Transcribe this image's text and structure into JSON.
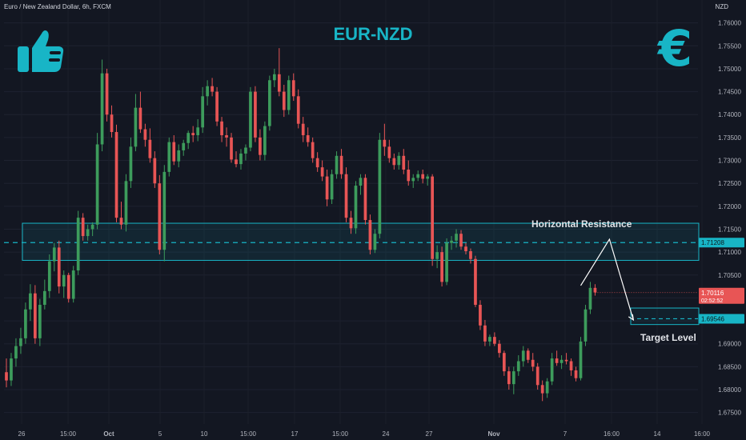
{
  "header": {
    "symbol_title": "Euro / New Zealand Dollar, 6h, FXCM",
    "currency": "NZD"
  },
  "title": "EUR-NZD",
  "annotations": {
    "resistance_label": "Horizontal Resistance",
    "target_label": "Target Level"
  },
  "icons": {
    "left": "thumbs-up-icon",
    "right": "euro-icon"
  },
  "euro_glyph": "€",
  "colors": {
    "background": "#131722",
    "up": "#26a69a",
    "up_body": "#3d9c5c",
    "down": "#e85555",
    "accent": "#18b5c6",
    "axis_text": "#b2b5be"
  },
  "chart_data": {
    "type": "candlestick",
    "title": "EUR-NZD",
    "ylim": [
      1.6725,
      1.765
    ],
    "y_ticks": [
      "1.76000",
      "1.75500",
      "1.75000",
      "1.74500",
      "1.74000",
      "1.73500",
      "1.73000",
      "1.72500",
      "1.72000",
      "1.71500",
      "1.71000",
      "1.70500",
      "1.70000",
      "1.69500",
      "1.69000",
      "1.68500",
      "1.68000",
      "1.67500"
    ],
    "x_ticks": [
      "26",
      "15:00",
      "Oct",
      "5",
      "10",
      "15:00",
      "17",
      "15:00",
      "24",
      "27",
      "Nov",
      "7",
      "16:00",
      "14",
      "16:00"
    ],
    "price_labels": {
      "current": "1.70116",
      "countdown": "02:52:52",
      "level": "1.71208",
      "target": "1.69546"
    },
    "resistance_zone": {
      "top": 1.7163,
      "bottom": 1.7082,
      "line": 1.71208
    },
    "target_zone": {
      "top": 1.6978,
      "bottom": 1.6942,
      "line": 1.69546
    },
    "projection": [
      {
        "i": 120,
        "p": 1.7027
      },
      {
        "i": 126,
        "p": 1.7128
      },
      {
        "i": 131,
        "p": 1.6952
      }
    ],
    "candles": [
      [
        1.6838,
        1.6868,
        1.6805,
        1.682
      ],
      [
        1.682,
        1.688,
        1.6808,
        1.6868
      ],
      [
        1.6868,
        1.6912,
        1.685,
        1.6895
      ],
      [
        1.6895,
        1.6935,
        1.6878,
        1.6912
      ],
      [
        1.6912,
        1.699,
        1.69,
        1.6975
      ],
      [
        1.6975,
        1.703,
        1.695,
        1.701
      ],
      [
        1.701,
        1.7028,
        1.69,
        1.6912
      ],
      [
        1.6912,
        1.6998,
        1.6895,
        1.6985
      ],
      [
        1.6985,
        1.704,
        1.6975,
        1.7015
      ],
      [
        1.7015,
        1.7095,
        1.7,
        1.708
      ],
      [
        1.708,
        1.712,
        1.7058,
        1.711
      ],
      [
        1.711,
        1.7125,
        1.701,
        1.7025
      ],
      [
        1.7025,
        1.706,
        1.7,
        1.705
      ],
      [
        1.705,
        1.7055,
        1.699,
        1.6998
      ],
      [
        1.6998,
        1.707,
        1.699,
        1.706
      ],
      [
        1.706,
        1.719,
        1.705,
        1.7175
      ],
      [
        1.7175,
        1.7185,
        1.7125,
        1.7135
      ],
      [
        1.7135,
        1.716,
        1.7125,
        1.715
      ],
      [
        1.715,
        1.7165,
        1.7135,
        1.716
      ],
      [
        1.716,
        1.736,
        1.715,
        1.7335
      ],
      [
        1.7335,
        1.752,
        1.732,
        1.749
      ],
      [
        1.749,
        1.75,
        1.7385,
        1.74
      ],
      [
        1.74,
        1.742,
        1.735,
        1.7362
      ],
      [
        1.7362,
        1.7378,
        1.7165,
        1.7175
      ],
      [
        1.7175,
        1.721,
        1.715,
        1.716
      ],
      [
        1.716,
        1.727,
        1.7145,
        1.7255
      ],
      [
        1.7255,
        1.735,
        1.724,
        1.733
      ],
      [
        1.733,
        1.7445,
        1.732,
        1.7415
      ],
      [
        1.7415,
        1.745,
        1.736,
        1.7368
      ],
      [
        1.7368,
        1.738,
        1.733,
        1.7345
      ],
      [
        1.7345,
        1.737,
        1.7295,
        1.7305
      ],
      [
        1.7305,
        1.732,
        1.724,
        1.725
      ],
      [
        1.725,
        1.7268,
        1.7095,
        1.7105
      ],
      [
        1.7105,
        1.729,
        1.708,
        1.7275
      ],
      [
        1.7275,
        1.735,
        1.7265,
        1.734
      ],
      [
        1.734,
        1.7355,
        1.729,
        1.7298
      ],
      [
        1.7298,
        1.7335,
        1.7285,
        1.7322
      ],
      [
        1.7322,
        1.7345,
        1.731,
        1.7338
      ],
      [
        1.7338,
        1.7365,
        1.7325,
        1.736
      ],
      [
        1.736,
        1.7375,
        1.734,
        1.7355
      ],
      [
        1.7355,
        1.739,
        1.7342,
        1.7372
      ],
      [
        1.7372,
        1.746,
        1.736,
        1.744
      ],
      [
        1.744,
        1.7475,
        1.742,
        1.7462
      ],
      [
        1.7462,
        1.748,
        1.744,
        1.745
      ],
      [
        1.745,
        1.746,
        1.7375,
        1.7385
      ],
      [
        1.7385,
        1.7395,
        1.734,
        1.7355
      ],
      [
        1.7355,
        1.7372,
        1.733,
        1.735
      ],
      [
        1.735,
        1.736,
        1.7295,
        1.7302
      ],
      [
        1.7302,
        1.732,
        1.7285,
        1.7292
      ],
      [
        1.7292,
        1.7325,
        1.728,
        1.7315
      ],
      [
        1.7315,
        1.7335,
        1.73,
        1.7328
      ],
      [
        1.7328,
        1.746,
        1.732,
        1.745
      ],
      [
        1.745,
        1.7462,
        1.734,
        1.735
      ],
      [
        1.735,
        1.7368,
        1.73,
        1.7312
      ],
      [
        1.7312,
        1.7385,
        1.73,
        1.7375
      ],
      [
        1.7375,
        1.7485,
        1.7365,
        1.7475
      ],
      [
        1.7475,
        1.75,
        1.746,
        1.7488
      ],
      [
        1.7488,
        1.7545,
        1.744,
        1.745
      ],
      [
        1.745,
        1.7465,
        1.7395,
        1.741
      ],
      [
        1.741,
        1.7485,
        1.74,
        1.7475
      ],
      [
        1.7475,
        1.749,
        1.743,
        1.744
      ],
      [
        1.744,
        1.7455,
        1.737,
        1.738
      ],
      [
        1.738,
        1.7395,
        1.734,
        1.7355
      ],
      [
        1.7355,
        1.7372,
        1.733,
        1.734
      ],
      [
        1.734,
        1.735,
        1.7295,
        1.7305
      ],
      [
        1.7305,
        1.7318,
        1.7275,
        1.7285
      ],
      [
        1.7285,
        1.73,
        1.7255,
        1.7265
      ],
      [
        1.7265,
        1.728,
        1.72,
        1.7215
      ],
      [
        1.7215,
        1.728,
        1.7205,
        1.727
      ],
      [
        1.727,
        1.732,
        1.726,
        1.731
      ],
      [
        1.731,
        1.7325,
        1.726,
        1.727
      ],
      [
        1.727,
        1.7285,
        1.7165,
        1.7175
      ],
      [
        1.7175,
        1.719,
        1.714,
        1.7152
      ],
      [
        1.7152,
        1.7255,
        1.714,
        1.7245
      ],
      [
        1.7245,
        1.727,
        1.7225,
        1.7262
      ],
      [
        1.7262,
        1.727,
        1.716,
        1.717
      ],
      [
        1.717,
        1.7182,
        1.7095,
        1.7105
      ],
      [
        1.7105,
        1.715,
        1.7098,
        1.714
      ],
      [
        1.714,
        1.736,
        1.713,
        1.7345
      ],
      [
        1.7345,
        1.738,
        1.731,
        1.733
      ],
      [
        1.733,
        1.7345,
        1.7295,
        1.7305
      ],
      [
        1.7305,
        1.7315,
        1.728,
        1.729
      ],
      [
        1.729,
        1.7318,
        1.728,
        1.731
      ],
      [
        1.731,
        1.7325,
        1.727,
        1.728
      ],
      [
        1.728,
        1.73,
        1.7245,
        1.7255
      ],
      [
        1.7255,
        1.727,
        1.724,
        1.7262
      ],
      [
        1.7262,
        1.7278,
        1.7255,
        1.727
      ],
      [
        1.727,
        1.728,
        1.725,
        1.726
      ],
      [
        1.726,
        1.727,
        1.7245,
        1.7265
      ],
      [
        1.7265,
        1.727,
        1.707,
        1.7085
      ],
      [
        1.7085,
        1.7115,
        1.7065,
        1.71
      ],
      [
        1.71,
        1.7112,
        1.7025,
        1.7035
      ],
      [
        1.7035,
        1.713,
        1.7028,
        1.712
      ],
      [
        1.712,
        1.7135,
        1.7105,
        1.7125
      ],
      [
        1.7125,
        1.715,
        1.711,
        1.714
      ],
      [
        1.714,
        1.7148,
        1.7105,
        1.7112
      ],
      [
        1.7112,
        1.712,
        1.7095,
        1.7102
      ],
      [
        1.7102,
        1.7108,
        1.7075,
        1.7085
      ],
      [
        1.7085,
        1.7092,
        1.698,
        1.6985
      ],
      [
        1.6985,
        1.6995,
        1.693,
        1.694
      ],
      [
        1.694,
        1.6952,
        1.6895,
        1.6905
      ],
      [
        1.6905,
        1.692,
        1.6895,
        1.6915
      ],
      [
        1.6915,
        1.6925,
        1.6895,
        1.69
      ],
      [
        1.69,
        1.6908,
        1.687,
        1.688
      ],
      [
        1.688,
        1.6885,
        1.683,
        1.684
      ],
      [
        1.684,
        1.685,
        1.68,
        1.6812
      ],
      [
        1.6812,
        1.685,
        1.679,
        1.684
      ],
      [
        1.684,
        1.6875,
        1.683,
        1.6862
      ],
      [
        1.6862,
        1.6895,
        1.685,
        1.6885
      ],
      [
        1.6885,
        1.689,
        1.6858,
        1.6865
      ],
      [
        1.6865,
        1.688,
        1.684,
        1.685
      ],
      [
        1.685,
        1.6858,
        1.68,
        1.681
      ],
      [
        1.681,
        1.682,
        1.6775,
        1.6792
      ],
      [
        1.6792,
        1.6825,
        1.6782,
        1.6818
      ],
      [
        1.6818,
        1.688,
        1.681,
        1.6868
      ],
      [
        1.6868,
        1.6885,
        1.6852,
        1.6858
      ],
      [
        1.6858,
        1.6875,
        1.6845,
        1.6865
      ],
      [
        1.6865,
        1.688,
        1.6855,
        1.6862
      ],
      [
        1.6862,
        1.6868,
        1.683,
        1.6842
      ],
      [
        1.6842,
        1.685,
        1.6818,
        1.6825
      ],
      [
        1.6825,
        1.6915,
        1.682,
        1.6905
      ],
      [
        1.6905,
        1.6985,
        1.6895,
        1.6975
      ],
      [
        1.6975,
        1.7035,
        1.6965,
        1.7022
      ],
      [
        1.7022,
        1.703,
        1.7005,
        1.7012
      ]
    ]
  }
}
